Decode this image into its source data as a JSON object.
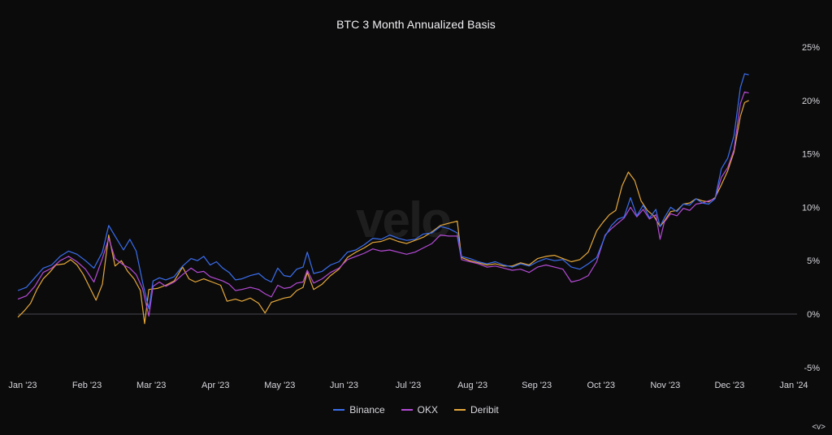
{
  "watermark": "velo",
  "nav_hint": "<v>",
  "chart_data": {
    "type": "line",
    "title": "BTC 3 Month Annualized Basis",
    "xlabel": "",
    "ylabel": "",
    "x_ticks": [
      "Jan '23",
      "Feb '23",
      "Mar '23",
      "Apr '23",
      "May '23",
      "Jun '23",
      "Jul '23",
      "Aug '23",
      "Sep '23",
      "Oct '23",
      "Nov '23",
      "Dec '23",
      "Jan '24"
    ],
    "y_ticks": [
      "25%",
      "20%",
      "15%",
      "10%",
      "5%",
      "0%",
      "-5%"
    ],
    "ylim": [
      -5,
      25
    ],
    "y_tick_values": [
      25,
      20,
      15,
      10,
      5,
      0,
      -5
    ],
    "zero_line": true,
    "grid": false,
    "legend_position": "bottom",
    "colors": {
      "Binance": "#3b6ff0",
      "OKX": "#b64bd6",
      "Deribit": "#e7a93a"
    },
    "series": [
      {
        "name": "Binance",
        "points": [
          [
            0,
            2.2
          ],
          [
            4,
            2.5
          ],
          [
            8,
            3.4
          ],
          [
            12,
            4.3
          ],
          [
            16,
            4.6
          ],
          [
            20,
            5.4
          ],
          [
            24,
            5.9
          ],
          [
            28,
            5.6
          ],
          [
            32,
            5.0
          ],
          [
            36,
            4.3
          ],
          [
            40,
            5.8
          ],
          [
            43,
            8.3
          ],
          [
            46,
            7.3
          ],
          [
            50,
            6.0
          ],
          [
            53,
            7.0
          ],
          [
            56,
            5.9
          ],
          [
            59,
            3.0
          ],
          [
            62,
            0.5
          ],
          [
            64,
            3.1
          ],
          [
            67,
            3.4
          ],
          [
            70,
            3.2
          ],
          [
            74,
            3.5
          ],
          [
            78,
            4.5
          ],
          [
            82,
            5.2
          ],
          [
            85,
            5.0
          ],
          [
            88,
            5.4
          ],
          [
            91,
            4.6
          ],
          [
            94,
            4.9
          ],
          [
            97,
            4.3
          ],
          [
            100,
            3.9
          ],
          [
            103,
            3.2
          ],
          [
            106,
            3.3
          ],
          [
            110,
            3.6
          ],
          [
            114,
            3.8
          ],
          [
            117,
            3.3
          ],
          [
            120,
            3.0
          ],
          [
            123,
            4.3
          ],
          [
            126,
            3.6
          ],
          [
            129,
            3.5
          ],
          [
            132,
            4.2
          ],
          [
            135,
            4.4
          ],
          [
            137,
            5.8
          ],
          [
            140,
            3.8
          ],
          [
            144,
            4.0
          ],
          [
            148,
            4.6
          ],
          [
            152,
            4.9
          ],
          [
            156,
            5.8
          ],
          [
            160,
            6.0
          ],
          [
            164,
            6.5
          ],
          [
            168,
            7.1
          ],
          [
            172,
            7.0
          ],
          [
            176,
            7.4
          ],
          [
            180,
            7.1
          ],
          [
            184,
            6.9
          ],
          [
            188,
            7.0
          ],
          [
            192,
            7.5
          ],
          [
            196,
            7.6
          ],
          [
            200,
            8.2
          ],
          [
            204,
            8.0
          ],
          [
            208,
            7.6
          ],
          [
            210,
            5.4
          ],
          [
            214,
            5.2
          ],
          [
            218,
            4.9
          ],
          [
            222,
            4.7
          ],
          [
            226,
            4.9
          ],
          [
            230,
            4.6
          ],
          [
            234,
            4.4
          ],
          [
            238,
            4.7
          ],
          [
            242,
            4.5
          ],
          [
            246,
            4.9
          ],
          [
            250,
            5.2
          ],
          [
            254,
            5.0
          ],
          [
            258,
            5.1
          ],
          [
            262,
            4.4
          ],
          [
            266,
            4.2
          ],
          [
            270,
            4.7
          ],
          [
            274,
            5.3
          ],
          [
            278,
            7.3
          ],
          [
            281,
            8.3
          ],
          [
            284,
            8.9
          ],
          [
            287,
            9.1
          ],
          [
            290,
            10.9
          ],
          [
            293,
            9.2
          ],
          [
            296,
            10.2
          ],
          [
            299,
            9.0
          ],
          [
            302,
            9.8
          ],
          [
            304,
            8.2
          ],
          [
            306,
            9.0
          ],
          [
            309,
            10.0
          ],
          [
            312,
            9.6
          ],
          [
            315,
            10.3
          ],
          [
            318,
            10.2
          ],
          [
            321,
            10.8
          ],
          [
            324,
            10.4
          ],
          [
            327,
            10.3
          ],
          [
            330,
            10.8
          ],
          [
            333,
            13.6
          ],
          [
            336,
            14.6
          ],
          [
            339,
            16.7
          ],
          [
            342,
            21.2
          ],
          [
            344,
            22.5
          ],
          [
            346,
            22.4
          ]
        ]
      },
      {
        "name": "OKX",
        "points": [
          [
            0,
            1.4
          ],
          [
            4,
            1.7
          ],
          [
            8,
            2.6
          ],
          [
            12,
            3.9
          ],
          [
            16,
            4.3
          ],
          [
            20,
            5.0
          ],
          [
            24,
            5.4
          ],
          [
            28,
            4.9
          ],
          [
            32,
            4.2
          ],
          [
            36,
            3.0
          ],
          [
            40,
            5.2
          ],
          [
            43,
            7.1
          ],
          [
            46,
            5.2
          ],
          [
            50,
            4.6
          ],
          [
            53,
            4.3
          ],
          [
            56,
            3.7
          ],
          [
            59,
            2.4
          ],
          [
            62,
            -0.2
          ],
          [
            64,
            2.6
          ],
          [
            67,
            3.0
          ],
          [
            70,
            2.6
          ],
          [
            74,
            3.0
          ],
          [
            78,
            3.7
          ],
          [
            82,
            4.3
          ],
          [
            85,
            3.9
          ],
          [
            88,
            4.0
          ],
          [
            91,
            3.5
          ],
          [
            94,
            3.3
          ],
          [
            97,
            3.1
          ],
          [
            100,
            2.8
          ],
          [
            103,
            2.2
          ],
          [
            106,
            2.3
          ],
          [
            110,
            2.5
          ],
          [
            114,
            2.3
          ],
          [
            117,
            1.9
          ],
          [
            120,
            1.6
          ],
          [
            123,
            2.7
          ],
          [
            126,
            2.4
          ],
          [
            129,
            2.5
          ],
          [
            132,
            2.9
          ],
          [
            135,
            3.0
          ],
          [
            137,
            4.1
          ],
          [
            140,
            2.9
          ],
          [
            144,
            3.3
          ],
          [
            148,
            3.9
          ],
          [
            152,
            4.3
          ],
          [
            156,
            5.1
          ],
          [
            160,
            5.4
          ],
          [
            164,
            5.7
          ],
          [
            168,
            6.1
          ],
          [
            172,
            5.9
          ],
          [
            176,
            6.0
          ],
          [
            180,
            5.8
          ],
          [
            184,
            5.6
          ],
          [
            188,
            5.8
          ],
          [
            192,
            6.2
          ],
          [
            196,
            6.6
          ],
          [
            200,
            7.4
          ],
          [
            204,
            7.3
          ],
          [
            208,
            7.3
          ],
          [
            210,
            5.1
          ],
          [
            214,
            4.9
          ],
          [
            218,
            4.7
          ],
          [
            222,
            4.4
          ],
          [
            226,
            4.5
          ],
          [
            230,
            4.3
          ],
          [
            234,
            4.1
          ],
          [
            238,
            4.2
          ],
          [
            242,
            3.9
          ],
          [
            246,
            4.4
          ],
          [
            250,
            4.6
          ],
          [
            254,
            4.4
          ],
          [
            258,
            4.2
          ],
          [
            262,
            3.0
          ],
          [
            266,
            3.2
          ],
          [
            270,
            3.6
          ],
          [
            274,
            4.9
          ],
          [
            278,
            7.4
          ],
          [
            281,
            8.0
          ],
          [
            284,
            8.5
          ],
          [
            287,
            9.0
          ],
          [
            290,
            10.0
          ],
          [
            293,
            9.1
          ],
          [
            296,
            9.8
          ],
          [
            299,
            8.9
          ],
          [
            302,
            9.3
          ],
          [
            304,
            7.0
          ],
          [
            306,
            8.6
          ],
          [
            309,
            9.4
          ],
          [
            312,
            9.2
          ],
          [
            315,
            9.9
          ],
          [
            318,
            9.7
          ],
          [
            321,
            10.3
          ],
          [
            324,
            10.4
          ],
          [
            327,
            10.6
          ],
          [
            330,
            10.8
          ],
          [
            333,
            12.8
          ],
          [
            336,
            13.7
          ],
          [
            339,
            15.4
          ],
          [
            342,
            19.7
          ],
          [
            344,
            20.8
          ],
          [
            346,
            20.7
          ]
        ]
      },
      {
        "name": "Deribit",
        "points": [
          [
            0,
            -0.3
          ],
          [
            3,
            0.3
          ],
          [
            6,
            1.0
          ],
          [
            9,
            2.3
          ],
          [
            12,
            3.3
          ],
          [
            15,
            3.9
          ],
          [
            18,
            4.6
          ],
          [
            22,
            4.7
          ],
          [
            25,
            5.1
          ],
          [
            28,
            4.6
          ],
          [
            31,
            3.7
          ],
          [
            34,
            2.5
          ],
          [
            37,
            1.3
          ],
          [
            40,
            2.8
          ],
          [
            43,
            7.4
          ],
          [
            46,
            4.5
          ],
          [
            49,
            5.0
          ],
          [
            52,
            4.0
          ],
          [
            55,
            3.3
          ],
          [
            58,
            2.2
          ],
          [
            60,
            -0.9
          ],
          [
            62,
            2.3
          ],
          [
            66,
            2.4
          ],
          [
            70,
            2.7
          ],
          [
            74,
            3.1
          ],
          [
            78,
            4.4
          ],
          [
            81,
            3.3
          ],
          [
            84,
            3.0
          ],
          [
            88,
            3.3
          ],
          [
            92,
            3.0
          ],
          [
            96,
            2.7
          ],
          [
            99,
            1.2
          ],
          [
            103,
            1.4
          ],
          [
            106,
            1.2
          ],
          [
            110,
            1.5
          ],
          [
            114,
            1.0
          ],
          [
            117,
            0.1
          ],
          [
            120,
            1.1
          ],
          [
            123,
            1.3
          ],
          [
            126,
            1.5
          ],
          [
            129,
            1.6
          ],
          [
            132,
            2.2
          ],
          [
            135,
            2.5
          ],
          [
            137,
            3.9
          ],
          [
            140,
            2.3
          ],
          [
            144,
            2.8
          ],
          [
            148,
            3.6
          ],
          [
            152,
            4.2
          ],
          [
            156,
            5.3
          ],
          [
            160,
            5.8
          ],
          [
            164,
            6.2
          ],
          [
            168,
            6.7
          ],
          [
            172,
            6.8
          ],
          [
            176,
            7.1
          ],
          [
            180,
            6.8
          ],
          [
            184,
            6.6
          ],
          [
            188,
            6.9
          ],
          [
            192,
            7.2
          ],
          [
            196,
            7.7
          ],
          [
            200,
            8.3
          ],
          [
            204,
            8.5
          ],
          [
            208,
            8.7
          ],
          [
            210,
            5.3
          ],
          [
            214,
            5.0
          ],
          [
            218,
            4.8
          ],
          [
            222,
            4.6
          ],
          [
            226,
            4.7
          ],
          [
            230,
            4.5
          ],
          [
            234,
            4.5
          ],
          [
            238,
            4.8
          ],
          [
            242,
            4.6
          ],
          [
            246,
            5.2
          ],
          [
            250,
            5.4
          ],
          [
            254,
            5.5
          ],
          [
            258,
            5.2
          ],
          [
            262,
            4.9
          ],
          [
            266,
            5.1
          ],
          [
            270,
            5.8
          ],
          [
            274,
            7.8
          ],
          [
            277,
            8.6
          ],
          [
            280,
            9.3
          ],
          [
            283,
            9.7
          ],
          [
            286,
            12.0
          ],
          [
            289,
            13.3
          ],
          [
            292,
            12.5
          ],
          [
            295,
            10.6
          ],
          [
            298,
            9.7
          ],
          [
            301,
            9.2
          ],
          [
            304,
            8.2
          ],
          [
            306,
            8.7
          ],
          [
            309,
            9.6
          ],
          [
            312,
            9.7
          ],
          [
            315,
            10.3
          ],
          [
            318,
            10.4
          ],
          [
            321,
            10.8
          ],
          [
            324,
            10.6
          ],
          [
            327,
            10.5
          ],
          [
            330,
            10.9
          ],
          [
            333,
            12.1
          ],
          [
            336,
            13.4
          ],
          [
            339,
            15.2
          ],
          [
            342,
            18.5
          ],
          [
            344,
            19.8
          ],
          [
            346,
            20.0
          ]
        ]
      }
    ]
  }
}
